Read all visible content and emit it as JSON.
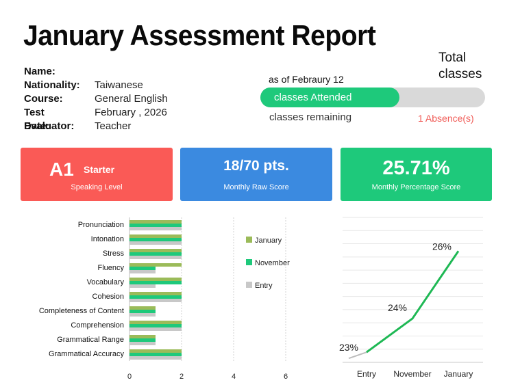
{
  "report": {
    "title": "January Assessment Report",
    "fields": [
      {
        "key": "Name:",
        "value": ""
      },
      {
        "key": "Nationality:",
        "value": "Taiwanese"
      },
      {
        "key": "Course:",
        "value": "General English"
      },
      {
        "key": "Test Date:",
        "value": "February , 2026"
      },
      {
        "key": "Evaluator:",
        "value": "Teacher"
      }
    ]
  },
  "attendance": {
    "total_label": "Total classes",
    "as_of": "as of Febraury 12",
    "attended_label": "classes Attended",
    "attended_fraction": 0.62,
    "remaining_label": "classes remaining",
    "absence": "1 Absence(s)"
  },
  "cards": {
    "speaking": {
      "level": "A1",
      "tag": "Starter",
      "caption": "Speaking Level"
    },
    "raw": {
      "value": "18/70 pts.",
      "caption": "Monthly Raw Score"
    },
    "percent": {
      "value": "25.71%",
      "caption": "Monthly Percentage Score"
    }
  },
  "colors": {
    "january": "#9bbb59",
    "november": "#1ec97b",
    "entry": "#c8c8c8",
    "line": "#1eb854",
    "red": "#fa5a56",
    "blue": "#3b8ae0",
    "green": "#1ec97b"
  },
  "chart_data": [
    {
      "type": "bar",
      "orientation": "horizontal",
      "categories": [
        "Pronunciation",
        "Intonation",
        "Stress",
        "Fluency",
        "Vocabulary",
        "Cohesion",
        "Completeness of Content",
        "Comprehension",
        "Grammatical Range",
        "Grammatical Accuracy"
      ],
      "series": [
        {
          "name": "January",
          "values": [
            2,
            2,
            2,
            2,
            2,
            2,
            1,
            2,
            1,
            2
          ]
        },
        {
          "name": "November",
          "values": [
            2,
            2,
            2,
            1,
            2,
            2,
            1,
            2,
            1,
            2
          ]
        },
        {
          "name": "Entry",
          "values": [
            2,
            2,
            2,
            1,
            1,
            2,
            1,
            2,
            1,
            2
          ]
        }
      ],
      "xlim": [
        0,
        7
      ],
      "xticks": [
        0,
        2,
        4,
        6
      ],
      "legend": "right",
      "grid": true
    },
    {
      "type": "line",
      "categories": [
        "Entry",
        "November",
        "January"
      ],
      "values": [
        23,
        24,
        26
      ],
      "value_labels": [
        "23%",
        "24%",
        "26%"
      ],
      "ylim": [
        22.7,
        27
      ],
      "grid": true
    }
  ]
}
